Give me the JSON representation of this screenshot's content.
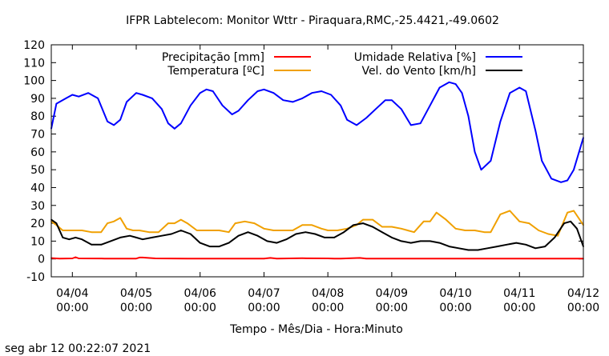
{
  "chart_data": {
    "type": "line",
    "title": "IFPR Labtelecom: Monitor Wttr - Piraquara,RMC,-25.4421,-49.0602",
    "xlabel": "Tempo - Mês/Dia - Hora:Minuto",
    "ylabel": "",
    "ylim": [
      -10,
      120
    ],
    "xlim": [
      -0.33,
      8.0
    ],
    "y_ticks": [
      "-10",
      "0",
      "10",
      "20",
      "30",
      "40",
      "50",
      "60",
      "70",
      "80",
      "90",
      "100",
      "110",
      "120"
    ],
    "x_ticks": [
      {
        "x": 0,
        "date": "04/04",
        "time": "00:00"
      },
      {
        "x": 1,
        "date": "04/05",
        "time": "00:00"
      },
      {
        "x": 2,
        "date": "04/06",
        "time": "00:00"
      },
      {
        "x": 3,
        "date": "04/07",
        "time": "00:00"
      },
      {
        "x": 4,
        "date": "04/08",
        "time": "00:00"
      },
      {
        "x": 5,
        "date": "04/09",
        "time": "00:00"
      },
      {
        "x": 6,
        "date": "04/10",
        "time": "00:00"
      },
      {
        "x": 7,
        "date": "04/11",
        "time": "00:00"
      },
      {
        "x": 8,
        "date": "04/12",
        "time": "00:00"
      }
    ],
    "grid": false,
    "legend_position": "top",
    "x_unit": "days from 04/04 00:00",
    "series": [
      {
        "name": "Precipitação [mm]",
        "color": "#ff0000",
        "x": [
          -0.33,
          -0.2,
          0.0,
          0.05,
          0.1,
          0.5,
          1.0,
          1.05,
          1.1,
          1.3,
          1.8,
          2.5,
          3.0,
          3.1,
          3.2,
          3.6,
          4.0,
          4.1,
          4.2,
          4.5,
          4.6,
          5.0,
          5.5,
          6.0,
          6.5,
          7.0,
          7.5,
          8.0
        ],
        "values": [
          0.5,
          0.2,
          0.3,
          1.0,
          0.3,
          0.2,
          0.2,
          0.8,
          0.8,
          0.3,
          0.2,
          0.2,
          0.2,
          0.6,
          0.2,
          0.4,
          0.3,
          0.2,
          0.2,
          0.6,
          0.2,
          0.2,
          0.2,
          0.2,
          0.2,
          0.2,
          0.2,
          0.2
        ]
      },
      {
        "name": "Umidade Relativa [%]",
        "color": "#0000ff",
        "x": [
          -0.33,
          -0.25,
          -0.1,
          0.0,
          0.1,
          0.25,
          0.4,
          0.55,
          0.65,
          0.75,
          0.85,
          1.0,
          1.1,
          1.25,
          1.4,
          1.5,
          1.6,
          1.7,
          1.85,
          2.0,
          2.1,
          2.2,
          2.35,
          2.5,
          2.6,
          2.75,
          2.9,
          3.0,
          3.15,
          3.3,
          3.45,
          3.6,
          3.75,
          3.9,
          4.05,
          4.2,
          4.3,
          4.45,
          4.6,
          4.75,
          4.9,
          5.0,
          5.15,
          5.3,
          5.45,
          5.6,
          5.75,
          5.9,
          6.0,
          6.1,
          6.2,
          6.3,
          6.4,
          6.55,
          6.7,
          6.85,
          7.0,
          7.1,
          7.25,
          7.35,
          7.5,
          7.65,
          7.75,
          7.85,
          8.0
        ],
        "values": [
          73,
          87,
          90,
          92,
          91,
          93,
          90,
          77,
          75,
          78,
          88,
          93,
          92,
          90,
          84,
          76,
          73,
          76,
          86,
          93,
          95,
          94,
          86,
          81,
          83,
          89,
          94,
          95,
          93,
          89,
          88,
          90,
          93,
          94,
          92,
          86,
          78,
          75,
          79,
          84,
          89,
          89,
          84,
          75,
          76,
          86,
          96,
          99,
          98,
          93,
          80,
          60,
          50,
          55,
          77,
          93,
          96,
          94,
          72,
          55,
          45,
          43,
          44,
          50,
          68
        ]
      },
      {
        "name": "Temperatura [ºC]",
        "color": "#f0a000",
        "x": [
          -0.33,
          -0.25,
          -0.15,
          0.0,
          0.15,
          0.3,
          0.45,
          0.55,
          0.65,
          0.75,
          0.85,
          0.95,
          1.05,
          1.2,
          1.35,
          1.5,
          1.6,
          1.7,
          1.8,
          1.95,
          2.1,
          2.3,
          2.45,
          2.55,
          2.7,
          2.85,
          3.0,
          3.15,
          3.3,
          3.45,
          3.6,
          3.75,
          3.9,
          4.0,
          4.15,
          4.3,
          4.45,
          4.55,
          4.7,
          4.85,
          5.0,
          5.15,
          5.35,
          5.5,
          5.6,
          5.7,
          5.85,
          6.0,
          6.15,
          6.3,
          6.45,
          6.55,
          6.7,
          6.85,
          7.0,
          7.15,
          7.3,
          7.45,
          7.6,
          7.75,
          7.85,
          8.0
        ],
        "values": [
          21,
          19,
          16,
          16,
          16,
          15,
          15,
          20,
          21,
          23,
          17,
          16,
          16,
          15,
          15,
          20,
          20,
          22,
          20,
          16,
          16,
          16,
          15,
          20,
          21,
          20,
          17,
          16,
          16,
          16,
          19,
          19,
          17,
          16,
          16,
          17,
          19,
          22,
          22,
          18,
          18,
          17,
          15,
          21,
          21,
          26,
          22,
          17,
          16,
          16,
          15,
          15,
          25,
          27,
          21,
          20,
          16,
          14,
          13,
          26,
          27,
          19
        ]
      },
      {
        "name": "Vel. do Vento [km/h]",
        "color": "#000000",
        "x": [
          -0.33,
          -0.25,
          -0.15,
          -0.05,
          0.05,
          0.15,
          0.3,
          0.45,
          0.6,
          0.75,
          0.9,
          1.0,
          1.1,
          1.25,
          1.4,
          1.55,
          1.7,
          1.85,
          2.0,
          2.15,
          2.3,
          2.45,
          2.6,
          2.75,
          2.9,
          3.05,
          3.2,
          3.35,
          3.5,
          3.65,
          3.8,
          3.95,
          4.1,
          4.25,
          4.4,
          4.55,
          4.7,
          4.85,
          5.0,
          5.15,
          5.3,
          5.45,
          5.6,
          5.75,
          5.9,
          6.05,
          6.2,
          6.35,
          6.5,
          6.65,
          6.8,
          6.95,
          7.1,
          7.25,
          7.4,
          7.55,
          7.7,
          7.8,
          7.9,
          8.0
        ],
        "values": [
          22,
          20,
          12,
          11,
          12,
          11,
          8,
          8,
          10,
          12,
          13,
          12,
          11,
          12,
          13,
          14,
          16,
          14,
          9,
          7,
          7,
          9,
          13,
          15,
          13,
          10,
          9,
          11,
          14,
          15,
          14,
          12,
          12,
          15,
          19,
          20,
          18,
          15,
          12,
          10,
          9,
          10,
          10,
          9,
          7,
          6,
          5,
          5,
          6,
          7,
          8,
          9,
          8,
          6,
          7,
          12,
          20,
          21,
          17,
          7
        ]
      }
    ]
  },
  "footer_timestamp": "seg abr 12 00:22:07 2021"
}
